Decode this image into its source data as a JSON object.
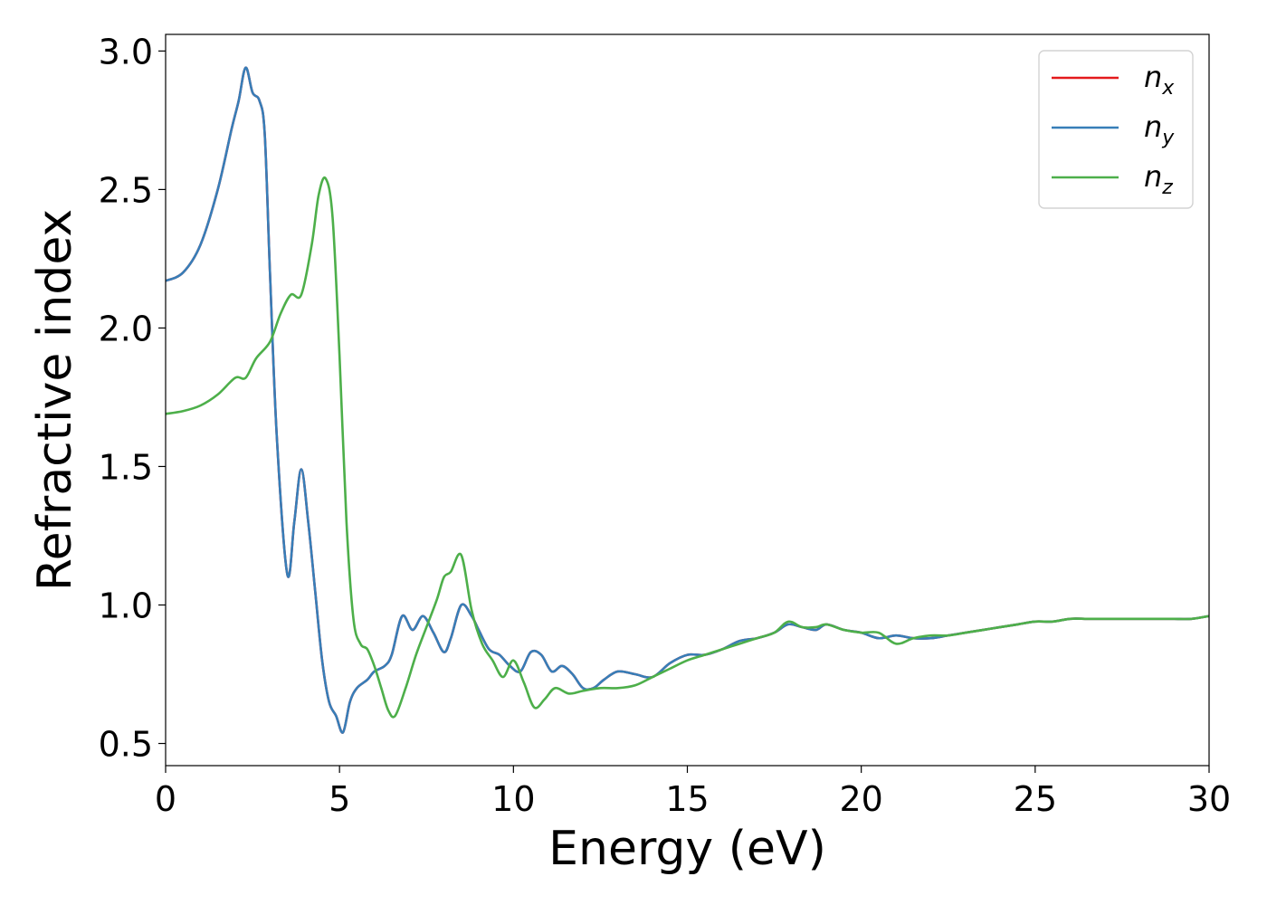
{
  "chart_data": {
    "type": "line",
    "title": "",
    "xlabel": "Energy (eV)",
    "ylabel": "Refractive index",
    "xlim": [
      0,
      30
    ],
    "ylim": [
      0.42,
      3.06
    ],
    "xticks": [
      0,
      5,
      10,
      15,
      20,
      25,
      30
    ],
    "xtick_labels": [
      "0",
      "5",
      "10",
      "15",
      "20",
      "25",
      "30"
    ],
    "yticks": [
      0.5,
      1.0,
      1.5,
      2.0,
      2.5,
      3.0
    ],
    "ytick_labels": [
      "0.5",
      "1.0",
      "1.5",
      "2.0",
      "2.5",
      "3.0"
    ],
    "grid": false,
    "legend_position": "top-right",
    "series": [
      {
        "name": "n_x",
        "label_main": "n",
        "label_sub": "x",
        "color": "#e41a1c",
        "x": [
          0,
          0.5,
          1.0,
          1.5,
          1.9,
          2.1,
          2.3,
          2.5,
          2.7,
          2.85,
          3.0,
          3.2,
          3.5,
          3.7,
          3.9,
          4.1,
          4.3,
          4.5,
          4.7,
          4.9,
          5.1,
          5.3,
          5.5,
          5.8,
          6.0,
          6.3,
          6.5,
          6.8,
          7.1,
          7.4,
          7.7,
          8.0,
          8.2,
          8.5,
          8.8,
          9.0,
          9.3,
          9.6,
          9.9,
          10.2,
          10.5,
          10.8,
          11.1,
          11.4,
          11.7,
          12.0,
          12.3,
          12.6,
          13.0,
          13.5,
          14.0,
          14.5,
          15.0,
          15.5,
          16.0,
          16.5,
          17.0,
          17.5,
          17.9,
          18.3,
          18.7,
          19.0,
          19.5,
          20.0,
          20.5,
          21.0,
          21.5,
          22.0,
          22.5,
          23.0,
          23.5,
          24.0,
          24.5,
          25.0,
          25.5,
          26.0,
          26.5,
          27.0,
          27.5,
          28.0,
          28.5,
          29.0,
          29.5,
          30.0
        ],
        "y": [
          2.17,
          2.2,
          2.3,
          2.5,
          2.72,
          2.82,
          2.94,
          2.85,
          2.82,
          2.7,
          2.2,
          1.6,
          1.11,
          1.3,
          1.49,
          1.3,
          1.05,
          0.8,
          0.65,
          0.6,
          0.54,
          0.65,
          0.7,
          0.73,
          0.76,
          0.78,
          0.82,
          0.96,
          0.91,
          0.96,
          0.9,
          0.83,
          0.88,
          1.0,
          0.96,
          0.91,
          0.84,
          0.82,
          0.78,
          0.76,
          0.83,
          0.82,
          0.76,
          0.78,
          0.75,
          0.7,
          0.7,
          0.73,
          0.76,
          0.75,
          0.74,
          0.79,
          0.82,
          0.82,
          0.84,
          0.87,
          0.88,
          0.9,
          0.93,
          0.92,
          0.91,
          0.93,
          0.91,
          0.9,
          0.88,
          0.89,
          0.88,
          0.88,
          0.89,
          0.9,
          0.91,
          0.92,
          0.93,
          0.94,
          0.94,
          0.95,
          0.95,
          0.95,
          0.95,
          0.95,
          0.95,
          0.95,
          0.95,
          0.96
        ]
      },
      {
        "name": "n_y",
        "label_main": "n",
        "label_sub": "y",
        "color": "#377eb8",
        "x": [
          0,
          0.5,
          1.0,
          1.5,
          1.9,
          2.1,
          2.3,
          2.5,
          2.7,
          2.85,
          3.0,
          3.2,
          3.5,
          3.7,
          3.9,
          4.1,
          4.3,
          4.5,
          4.7,
          4.9,
          5.1,
          5.3,
          5.5,
          5.8,
          6.0,
          6.3,
          6.5,
          6.8,
          7.1,
          7.4,
          7.7,
          8.0,
          8.2,
          8.5,
          8.8,
          9.0,
          9.3,
          9.6,
          9.9,
          10.2,
          10.5,
          10.8,
          11.1,
          11.4,
          11.7,
          12.0,
          12.3,
          12.6,
          13.0,
          13.5,
          14.0,
          14.5,
          15.0,
          15.5,
          16.0,
          16.5,
          17.0,
          17.5,
          17.9,
          18.3,
          18.7,
          19.0,
          19.5,
          20.0,
          20.5,
          21.0,
          21.5,
          22.0,
          22.5,
          23.0,
          23.5,
          24.0,
          24.5,
          25.0,
          25.5,
          26.0,
          26.5,
          27.0,
          27.5,
          28.0,
          28.5,
          29.0,
          29.5,
          30.0
        ],
        "y": [
          2.17,
          2.2,
          2.3,
          2.5,
          2.72,
          2.82,
          2.94,
          2.85,
          2.82,
          2.7,
          2.2,
          1.6,
          1.11,
          1.3,
          1.49,
          1.3,
          1.05,
          0.8,
          0.65,
          0.6,
          0.54,
          0.65,
          0.7,
          0.73,
          0.76,
          0.78,
          0.82,
          0.96,
          0.91,
          0.96,
          0.9,
          0.83,
          0.88,
          1.0,
          0.96,
          0.91,
          0.84,
          0.82,
          0.78,
          0.76,
          0.83,
          0.82,
          0.76,
          0.78,
          0.75,
          0.7,
          0.7,
          0.73,
          0.76,
          0.75,
          0.74,
          0.79,
          0.82,
          0.82,
          0.84,
          0.87,
          0.88,
          0.9,
          0.93,
          0.92,
          0.91,
          0.93,
          0.91,
          0.9,
          0.88,
          0.89,
          0.88,
          0.88,
          0.89,
          0.9,
          0.91,
          0.92,
          0.93,
          0.94,
          0.94,
          0.95,
          0.95,
          0.95,
          0.95,
          0.95,
          0.95,
          0.95,
          0.95,
          0.96
        ]
      },
      {
        "name": "n_z",
        "label_main": "n",
        "label_sub": "z",
        "color": "#4daf4a",
        "x": [
          0,
          0.5,
          1.0,
          1.5,
          2.0,
          2.3,
          2.6,
          3.0,
          3.3,
          3.6,
          3.9,
          4.2,
          4.4,
          4.6,
          4.8,
          5.0,
          5.2,
          5.4,
          5.6,
          5.8,
          6.0,
          6.2,
          6.4,
          6.6,
          6.9,
          7.2,
          7.5,
          7.8,
          8.0,
          8.2,
          8.5,
          8.8,
          9.1,
          9.4,
          9.7,
          10.0,
          10.3,
          10.6,
          10.9,
          11.2,
          11.6,
          12.0,
          12.5,
          13.0,
          13.5,
          14.0,
          14.5,
          15.0,
          15.5,
          16.0,
          16.5,
          17.0,
          17.5,
          17.9,
          18.3,
          18.7,
          19.0,
          19.5,
          20.0,
          20.5,
          21.0,
          21.5,
          22.0,
          22.5,
          23.0,
          23.5,
          24.0,
          24.5,
          25.0,
          25.5,
          26.0,
          26.5,
          27.0,
          27.5,
          28.0,
          28.5,
          29.0,
          29.5,
          30.0
        ],
        "y": [
          1.69,
          1.7,
          1.72,
          1.76,
          1.82,
          1.82,
          1.89,
          1.95,
          2.05,
          2.12,
          2.12,
          2.3,
          2.48,
          2.54,
          2.4,
          1.9,
          1.3,
          0.95,
          0.86,
          0.84,
          0.78,
          0.7,
          0.62,
          0.6,
          0.7,
          0.82,
          0.92,
          1.02,
          1.1,
          1.12,
          1.18,
          0.98,
          0.86,
          0.8,
          0.74,
          0.8,
          0.72,
          0.63,
          0.66,
          0.7,
          0.68,
          0.69,
          0.7,
          0.7,
          0.71,
          0.74,
          0.77,
          0.8,
          0.82,
          0.84,
          0.86,
          0.88,
          0.9,
          0.94,
          0.92,
          0.92,
          0.93,
          0.91,
          0.9,
          0.9,
          0.86,
          0.88,
          0.89,
          0.89,
          0.9,
          0.91,
          0.92,
          0.93,
          0.94,
          0.94,
          0.95,
          0.95,
          0.95,
          0.95,
          0.95,
          0.95,
          0.95,
          0.95,
          0.96
        ]
      }
    ]
  }
}
